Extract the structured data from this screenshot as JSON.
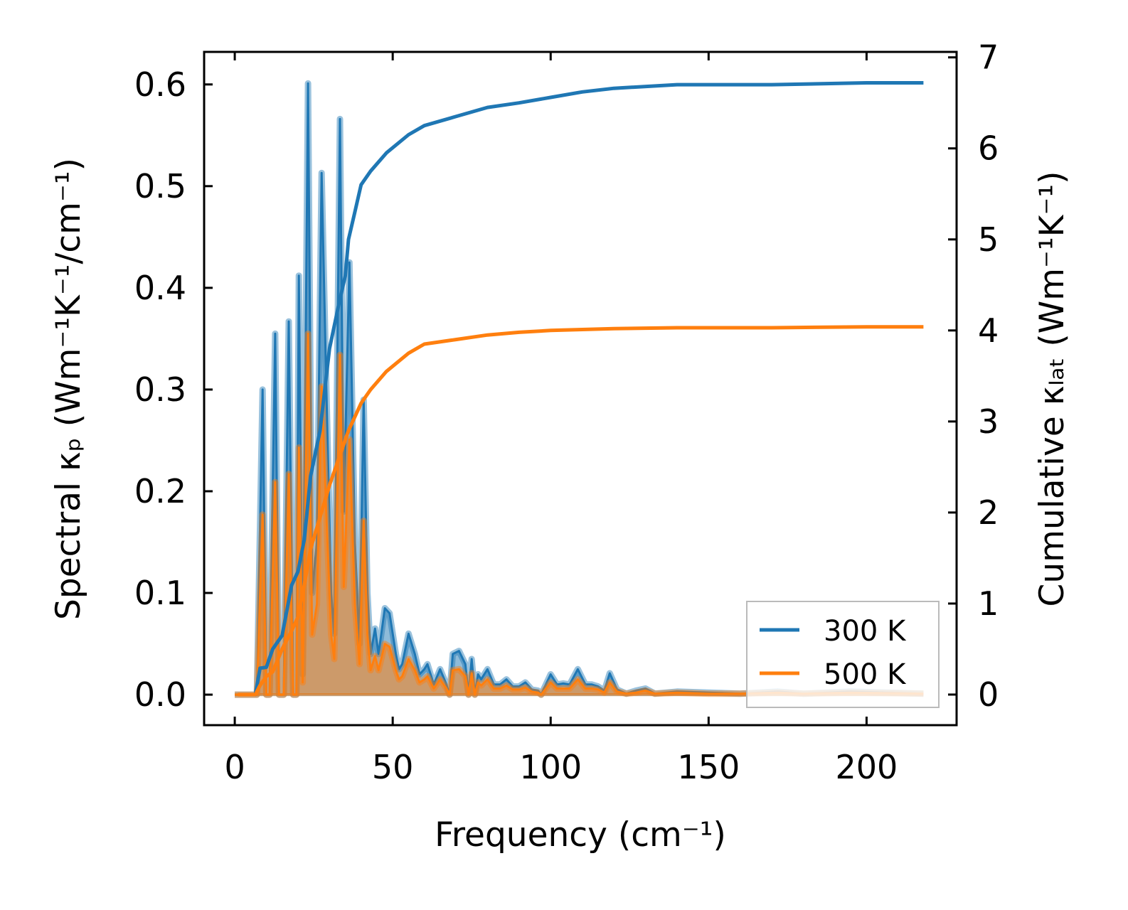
{
  "chart_data": {
    "type": "line",
    "xlabel": "Frequency (cm⁻¹)",
    "ylabel_left": "Spectral κₚ (Wm⁻¹K⁻¹/cm⁻¹)",
    "ylabel_right": "Cumulative κₗₐₜ (Wm⁻¹K⁻¹)",
    "xlim": [
      -9.7,
      228.5
    ],
    "ylim_left": [
      -0.03,
      0.632
    ],
    "ylim_right": [
      -0.336,
      7.06
    ],
    "xticks": [
      "0",
      "50",
      "100",
      "150",
      "200"
    ],
    "xtick_values": [
      0,
      50,
      100,
      150,
      200
    ],
    "yticks_left": [
      "0.0",
      "0.1",
      "0.2",
      "0.3",
      "0.4",
      "0.5",
      "0.6"
    ],
    "ytick_left_values": [
      0,
      0.1,
      0.2,
      0.3,
      0.4,
      0.5,
      0.6
    ],
    "yticks_right": [
      "0",
      "1",
      "2",
      "3",
      "4",
      "5",
      "6",
      "7"
    ],
    "ytick_right_values": [
      0,
      1,
      2,
      3,
      4,
      5,
      6,
      7
    ],
    "legend": {
      "placement": "lower-right",
      "entries": [
        "300 K",
        "500 K"
      ]
    },
    "colors": {
      "300 K": "#1f77b4",
      "500 K": "#ff7f0e"
    },
    "spectral": {
      "x": [
        0,
        7,
        8.8,
        10,
        11,
        12.8,
        14,
        15.5,
        17.1,
        18.5,
        19.5,
        20.3,
        21.5,
        23.2,
        24.5,
        26,
        27.5,
        29,
        30.5,
        31.5,
        33.3,
        34.5,
        36.3,
        38,
        39.5,
        40.8,
        42,
        43,
        44.4,
        45.5,
        47.5,
        49,
        51,
        52,
        53,
        55,
        57,
        58.5,
        60,
        61,
        63,
        65,
        67,
        68,
        69,
        71,
        73,
        74,
        75,
        76,
        77,
        78,
        80,
        82,
        84,
        86,
        88,
        90,
        92,
        94,
        96,
        97,
        100,
        102,
        104,
        106,
        108.6,
        111,
        113,
        115,
        117,
        118.7,
        121,
        124,
        127,
        130,
        133,
        140,
        150,
        160,
        172,
        180,
        195,
        218
      ],
      "series": [
        {
          "name": "300 K",
          "values": [
            0,
            0,
            0.3,
            0,
            0,
            0.355,
            0,
            0,
            0.367,
            0,
            0,
            0.412,
            0.02,
            0.601,
            0.1,
            0.15,
            0.513,
            0.3,
            0.1,
            0.06,
            0.566,
            0.18,
            0.425,
            0.15,
            0.05,
            0.29,
            0.1,
            0.04,
            0.065,
            0.04,
            0.085,
            0.08,
            0.04,
            0.025,
            0.03,
            0.06,
            0.04,
            0.02,
            0.025,
            0.03,
            0.01,
            0.025,
            0.01,
            0,
            0.04,
            0.043,
            0.03,
            0,
            0.035,
            0,
            0.02,
            0.015,
            0.025,
            0.01,
            0.01,
            0.015,
            0.008,
            0.008,
            0.012,
            0.005,
            0.004,
            0,
            0.02,
            0.01,
            0.011,
            0.01,
            0.025,
            0.01,
            0.01,
            0.008,
            0.004,
            0.021,
            0.005,
            0.001,
            0.004,
            0.006,
            0.001,
            0.003,
            0.002,
            0.001,
            0.003,
            0.001,
            0.003,
            0.001
          ]
        },
        {
          "name": "500 K",
          "values": [
            0,
            0,
            0.177,
            0,
            0,
            0.209,
            0,
            0,
            0.217,
            0,
            0,
            0.243,
            0.012,
            0.355,
            0.059,
            0.089,
            0.303,
            0.177,
            0.059,
            0.035,
            0.334,
            0.106,
            0.251,
            0.089,
            0.03,
            0.171,
            0.059,
            0.024,
            0.038,
            0.024,
            0.05,
            0.047,
            0.024,
            0.015,
            0.018,
            0.035,
            0.024,
            0.012,
            0.015,
            0.018,
            0.006,
            0.015,
            0.006,
            0,
            0.024,
            0.025,
            0.018,
            0,
            0.021,
            0,
            0.012,
            0.009,
            0.015,
            0.006,
            0.006,
            0.009,
            0.005,
            0.005,
            0.007,
            0.003,
            0.002,
            0,
            0.012,
            0.006,
            0.006,
            0.006,
            0.015,
            0.006,
            0.006,
            0.005,
            0.002,
            0.012,
            0.003,
            0.001,
            0.002,
            0.004,
            0.001,
            0.002,
            0.001,
            0.001,
            0.002,
            0.001,
            0.002,
            0.001
          ]
        }
      ]
    },
    "cumulative": {
      "x": [
        1,
        6.5,
        8,
        10,
        12,
        15,
        18,
        20,
        22,
        24,
        27,
        30,
        33,
        35,
        36,
        38,
        40,
        43,
        48,
        55,
        60,
        70,
        80,
        90,
        100,
        110,
        120,
        140,
        170,
        200,
        218
      ],
      "series": [
        {
          "name": "300 K",
          "values": [
            0,
            0,
            0.29,
            0.3,
            0.5,
            0.65,
            1.2,
            1.35,
            1.7,
            2.4,
            2.9,
            3.8,
            4.3,
            4.6,
            5.0,
            5.3,
            5.6,
            5.75,
            5.95,
            6.15,
            6.25,
            6.35,
            6.45,
            6.5,
            6.56,
            6.62,
            6.66,
            6.7,
            6.7,
            6.72,
            6.72
          ]
        },
        {
          "name": "500 K",
          "values": [
            0,
            0,
            0.1,
            0.2,
            0.25,
            0.5,
            0.7,
            0.85,
            1.2,
            1.6,
            1.95,
            2.3,
            2.6,
            2.8,
            2.9,
            3.05,
            3.2,
            3.35,
            3.55,
            3.75,
            3.85,
            3.9,
            3.95,
            3.98,
            4.0,
            4.01,
            4.02,
            4.03,
            4.03,
            4.04,
            4.04
          ]
        }
      ]
    }
  }
}
